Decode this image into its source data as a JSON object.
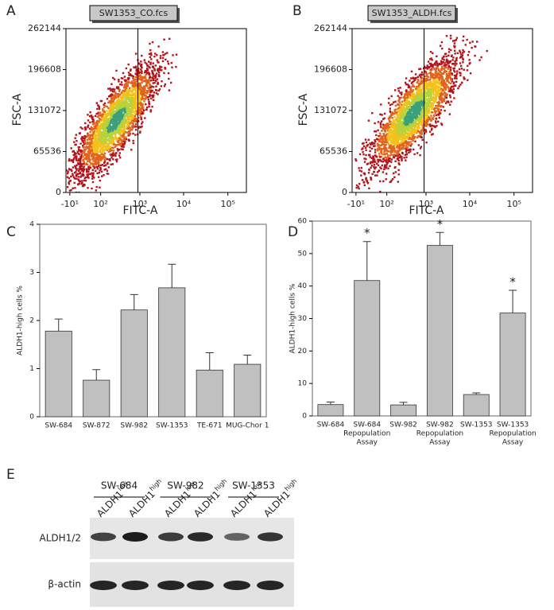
{
  "chart_data": [
    {
      "type": "density",
      "panel": "A",
      "title": "SW1353_CO.fcs",
      "xlabel": "FITC-A",
      "ylabel": "FSC-A",
      "xscale": "symlog",
      "linthresh": 35,
      "xlim": [
        -20,
        262144
      ],
      "ylim": [
        0,
        262144
      ],
      "xticks": [
        {
          "value": -10,
          "label": "-10¹"
        },
        {
          "value": 100,
          "label": "10²"
        },
        {
          "value": 1000,
          "label": "10³"
        },
        {
          "value": 10000,
          "label": "10⁴"
        },
        {
          "value": 100000,
          "label": "10⁵"
        }
      ],
      "yticks": [
        0,
        65536,
        131072,
        196608,
        262144
      ],
      "gate_x": 900
    },
    {
      "type": "density",
      "panel": "B",
      "title": "SW1353_ALDH.fcs",
      "xlabel": "FITC-A",
      "ylabel": "FSC-A",
      "xscale": "symlog",
      "linthresh": 35,
      "xlim": [
        -20,
        262144
      ],
      "ylim": [
        0,
        262144
      ],
      "xticks": [
        {
          "value": -10,
          "label": "-10¹"
        },
        {
          "value": 100,
          "label": "10²"
        },
        {
          "value": 1000,
          "label": "10³"
        },
        {
          "value": 10000,
          "label": "10⁴"
        },
        {
          "value": 100000,
          "label": "10⁵"
        }
      ],
      "yticks": [
        0,
        65536,
        131072,
        196608,
        262144
      ],
      "gate_x": 900
    },
    {
      "type": "bar",
      "panel": "C",
      "ylabel": "ALDH1-high cells %",
      "color": "#c0c0c0",
      "categories": [
        [
          "SW-684"
        ],
        [
          "SW-872"
        ],
        [
          "SW-982"
        ],
        [
          "SW-1353"
        ],
        [
          "TE-671"
        ],
        [
          "MUG-Chor 1"
        ]
      ],
      "values": [
        1.78,
        0.76,
        2.22,
        2.68,
        0.97,
        1.09
      ],
      "errors": [
        0.25,
        0.22,
        0.32,
        0.49,
        0.36,
        0.19
      ],
      "ylim": [
        0,
        4
      ],
      "yticks": [
        0,
        1,
        2,
        3,
        4
      ]
    },
    {
      "type": "bar",
      "panel": "D",
      "ylabel": "ALDH1-high cells %",
      "color": "#c0c0c0",
      "categories": [
        [
          "SW-684"
        ],
        [
          "SW-684",
          "Repopulation",
          "Assay"
        ],
        [
          "SW-982"
        ],
        [
          "SW-982",
          "Repopulation",
          "Assay"
        ],
        [
          "SW-1353"
        ],
        [
          "SW-1353",
          "Repopulation",
          "Assay"
        ]
      ],
      "values": [
        3.5,
        41.7,
        3.4,
        52.5,
        6.6,
        31.7
      ],
      "errors": [
        0.8,
        12,
        0.8,
        4,
        0.5,
        7
      ],
      "significance": [
        {
          "index": 1,
          "label": "*"
        },
        {
          "index": 3,
          "label": "*"
        },
        {
          "index": 5,
          "label": "*"
        }
      ],
      "ylim": [
        0,
        60
      ],
      "yticks": [
        0,
        10,
        20,
        30,
        40,
        50,
        60
      ]
    }
  ],
  "blot": {
    "panel": "E",
    "groups": [
      "SW-684",
      "SW-982",
      "SW-1353"
    ],
    "lanes": [
      {
        "base": "ALDH1",
        "sup": "low"
      },
      {
        "base": "ALDH1",
        "sup": "high"
      },
      {
        "base": "ALDH1",
        "sup": "low"
      },
      {
        "base": "ALDH1",
        "sup": "high"
      },
      {
        "base": "ALDH1",
        "sup": "low"
      },
      {
        "base": "ALDH1",
        "sup": "high"
      }
    ],
    "rows": [
      "ALDH1/2",
      "β-actin"
    ]
  }
}
